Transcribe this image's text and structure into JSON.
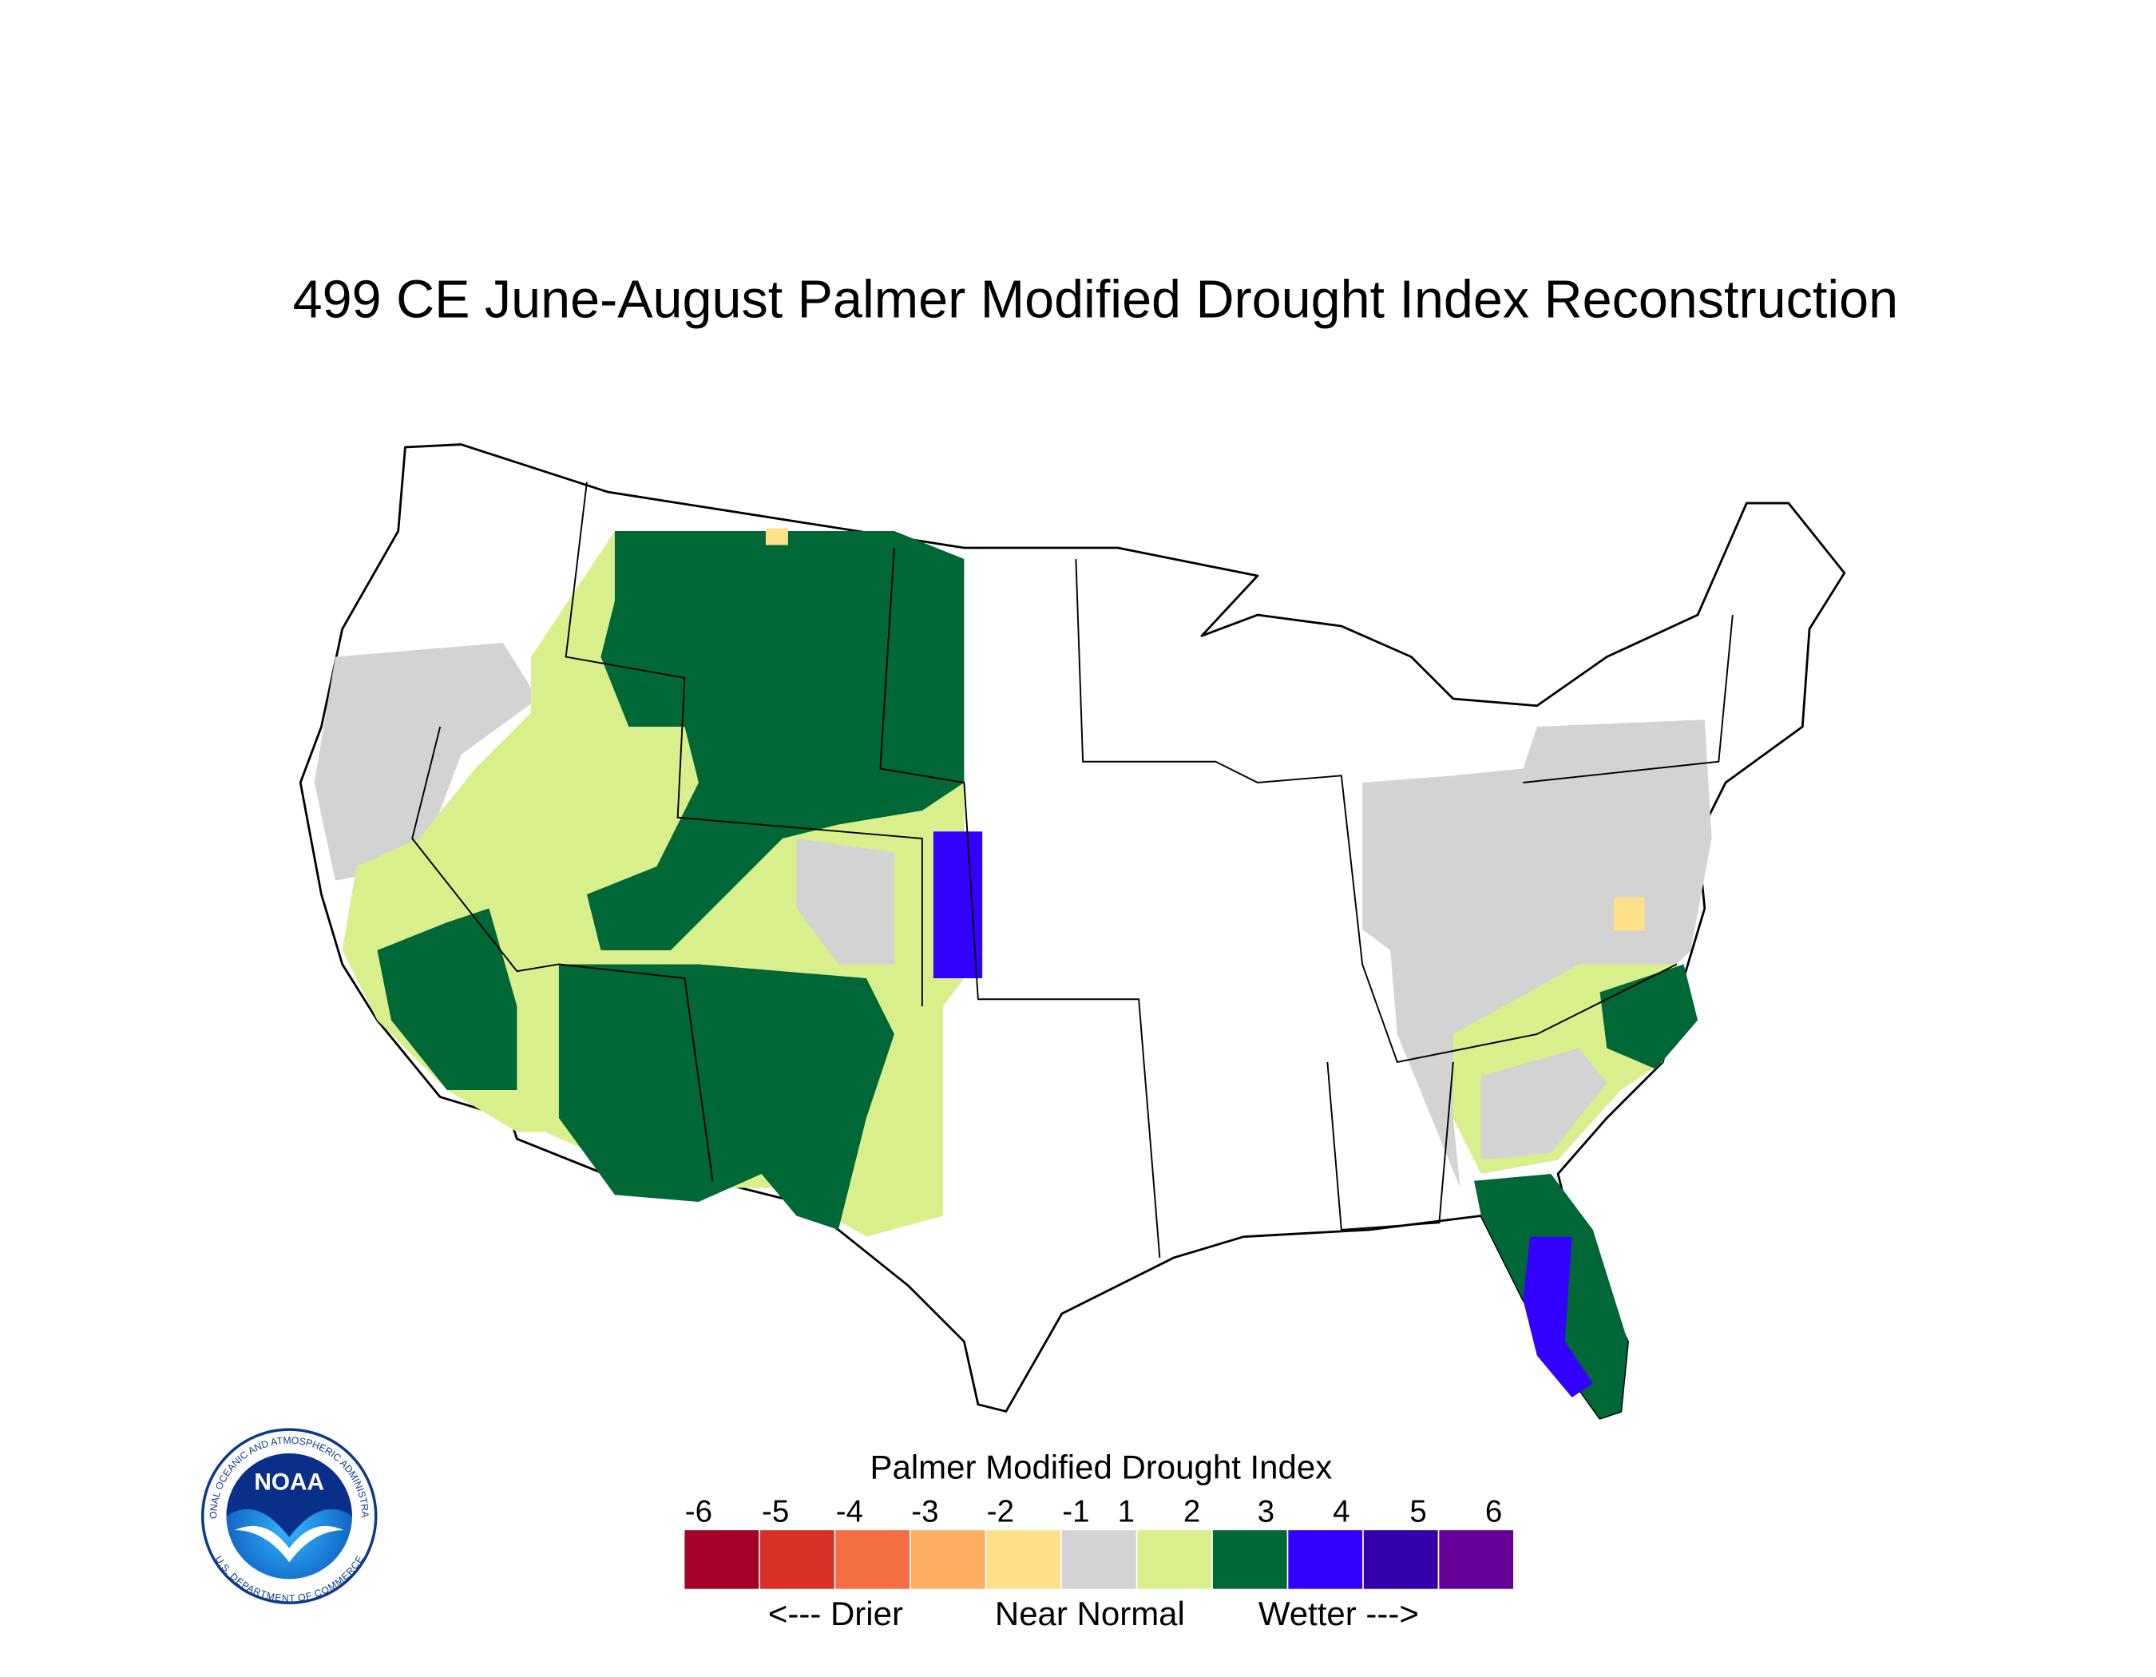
{
  "title": "499 CE  June-August  Palmer Modified Drought Index Reconstruction",
  "legend": {
    "title": "Palmer Modified Drought Index",
    "labels": [
      -6,
      -5,
      -4,
      -3,
      -2,
      -1,
      1,
      2,
      3,
      4,
      5,
      6
    ],
    "colors": [
      "#a50026",
      "#d73027",
      "#f46d43",
      "#fdae61",
      "#fee08b",
      "#d3d3d3",
      "#d9ef8b",
      "#006837",
      "#3300ff",
      "#3300aa",
      "#660099"
    ],
    "captions": [
      "<--- Drier",
      "Near Normal",
      "Wetter --->"
    ]
  },
  "logo": {
    "name": "NOAA",
    "ring_top": "NATIONAL OCEANIC AND ATMOSPHERIC ADMINISTRATION",
    "ring_bottom": "U.S. DEPARTMENT OF COMMERCE"
  }
}
